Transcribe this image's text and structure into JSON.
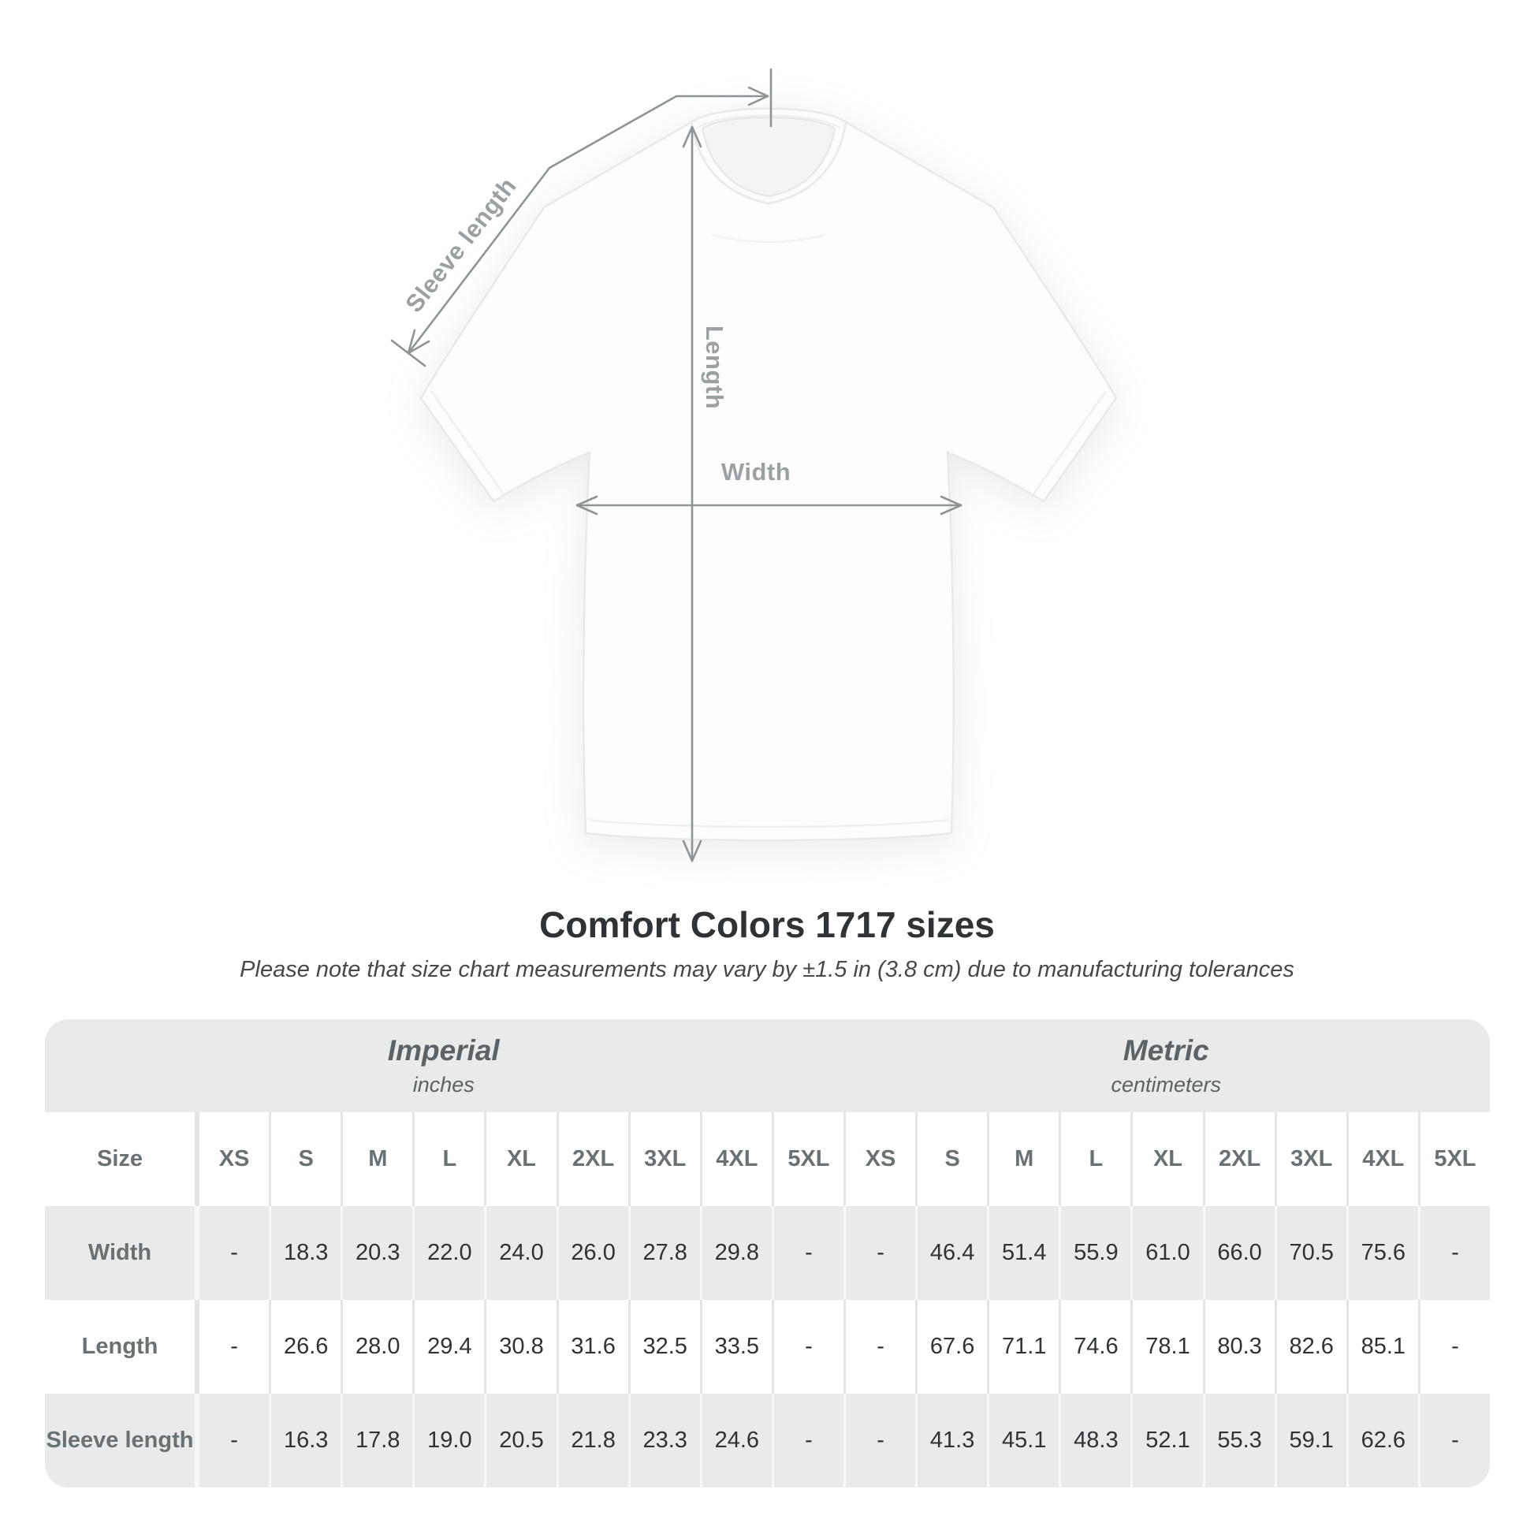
{
  "diagram": {
    "sleeve_length_label": "Sleeve length",
    "length_label": "Length",
    "width_label": "Width"
  },
  "heading": {
    "title": "Comfort Colors 1717 sizes",
    "subtitle": "Please note that size chart measurements may vary by ±1.5 in (3.8 cm) due to manufacturing tolerances"
  },
  "chart_data": {
    "type": "table",
    "title": "Comfort Colors 1717 sizes",
    "size_label": "Size",
    "unit_groups": [
      {
        "name": "Imperial",
        "unit": "inches"
      },
      {
        "name": "Metric",
        "unit": "centimeters"
      }
    ],
    "sizes": [
      "XS",
      "S",
      "M",
      "L",
      "XL",
      "2XL",
      "3XL",
      "4XL",
      "5XL"
    ],
    "rows": [
      {
        "label": "Width",
        "imperial": [
          "-",
          "18.3",
          "20.3",
          "22.0",
          "24.0",
          "26.0",
          "27.8",
          "29.8",
          "-"
        ],
        "metric": [
          "-",
          "46.4",
          "51.4",
          "55.9",
          "61.0",
          "66.0",
          "70.5",
          "75.6",
          "-"
        ]
      },
      {
        "label": "Length",
        "imperial": [
          "-",
          "26.6",
          "28.0",
          "29.4",
          "30.8",
          "31.6",
          "32.5",
          "33.5",
          "-"
        ],
        "metric": [
          "-",
          "67.6",
          "71.1",
          "74.6",
          "78.1",
          "80.3",
          "82.6",
          "85.1",
          "-"
        ]
      },
      {
        "label": "Sleeve length",
        "imperial": [
          "-",
          "16.3",
          "17.8",
          "19.0",
          "20.5",
          "21.8",
          "23.3",
          "24.6",
          "-"
        ],
        "metric": [
          "-",
          "41.3",
          "45.1",
          "48.3",
          "52.1",
          "55.3",
          "59.1",
          "62.6",
          "-"
        ]
      }
    ]
  },
  "colors": {
    "background": "#ffffff",
    "table_band_gray": "#e9eaea",
    "separator_on_white": "#e3e5e5",
    "separator_on_gray": "#f7f8f8",
    "text_dark": "#2f3335",
    "text_gray": "#6a7174",
    "unit_text": "#5c6366",
    "annotation_line": "#8e9396",
    "annotation_label": "#9ba0a3"
  }
}
